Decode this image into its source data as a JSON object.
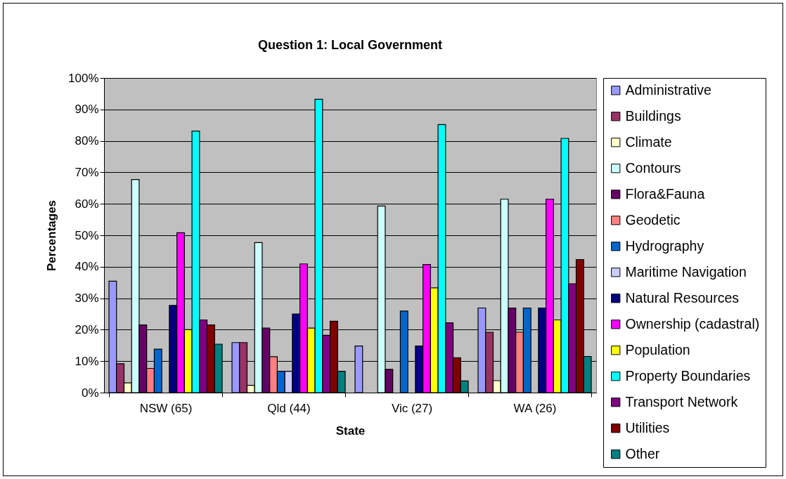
{
  "chart_data": {
    "type": "bar",
    "title": "Question 1: Local Government",
    "xlabel": "State",
    "ylabel": "Percentages",
    "categories": [
      "NSW (65)",
      "Qld (44)",
      "Vic (27)",
      "WA (26)"
    ],
    "series": [
      {
        "name": "Administrative",
        "color": "#9999ff",
        "values": [
          35.4,
          15.9,
          14.8,
          26.9
        ]
      },
      {
        "name": "Buildings",
        "color": "#993366",
        "values": [
          9.2,
          15.9,
          null,
          19.2
        ]
      },
      {
        "name": "Climate",
        "color": "#ffffcc",
        "values": [
          3.1,
          2.3,
          null,
          3.8
        ]
      },
      {
        "name": "Contours",
        "color": "#ccffff",
        "values": [
          67.7,
          47.7,
          59.3,
          61.5
        ]
      },
      {
        "name": "Flora&Fauna",
        "color": "#660066",
        "values": [
          21.5,
          20.5,
          7.4,
          26.9
        ]
      },
      {
        "name": "Geodetic",
        "color": "#ff8080",
        "values": [
          7.7,
          11.4,
          null,
          19.2
        ]
      },
      {
        "name": "Hydrography",
        "color": "#0066cc",
        "values": [
          13.8,
          6.8,
          25.9,
          26.9
        ]
      },
      {
        "name": "Maritime Navigation",
        "color": "#ccccff",
        "values": [
          null,
          6.8,
          null,
          null
        ]
      },
      {
        "name": "Natural Resources",
        "color": "#000080",
        "values": [
          27.7,
          25.0,
          14.8,
          26.9
        ]
      },
      {
        "name": "Ownership (cadastral)",
        "color": "#ff00ff",
        "values": [
          50.8,
          40.9,
          40.7,
          61.5
        ]
      },
      {
        "name": "Population",
        "color": "#ffff00",
        "values": [
          20.0,
          20.5,
          33.3,
          23.1
        ]
      },
      {
        "name": "Property Boundaries",
        "color": "#00ffff",
        "values": [
          83.1,
          93.2,
          85.2,
          80.8
        ]
      },
      {
        "name": "Transport Network",
        "color": "#800080",
        "values": [
          23.1,
          18.2,
          22.2,
          34.6
        ]
      },
      {
        "name": "Utilities",
        "color": "#800000",
        "values": [
          21.5,
          22.7,
          11.1,
          42.3
        ]
      },
      {
        "name": "Other",
        "color": "#008080",
        "values": [
          15.4,
          6.8,
          3.7,
          11.5
        ]
      }
    ],
    "ylim": [
      0,
      100
    ],
    "yticks": [
      {
        "value": 0,
        "label": "0%"
      },
      {
        "value": 10,
        "label": "10%"
      },
      {
        "value": 20,
        "label": "20%"
      },
      {
        "value": 30,
        "label": "30%"
      },
      {
        "value": 40,
        "label": "40%"
      },
      {
        "value": 50,
        "label": "50%"
      },
      {
        "value": 60,
        "label": "60%"
      },
      {
        "value": 70,
        "label": "70%"
      },
      {
        "value": 80,
        "label": "80%"
      },
      {
        "value": 90,
        "label": "90%"
      },
      {
        "value": 100,
        "label": "100%"
      }
    ],
    "grid": "y",
    "legend": "right"
  }
}
